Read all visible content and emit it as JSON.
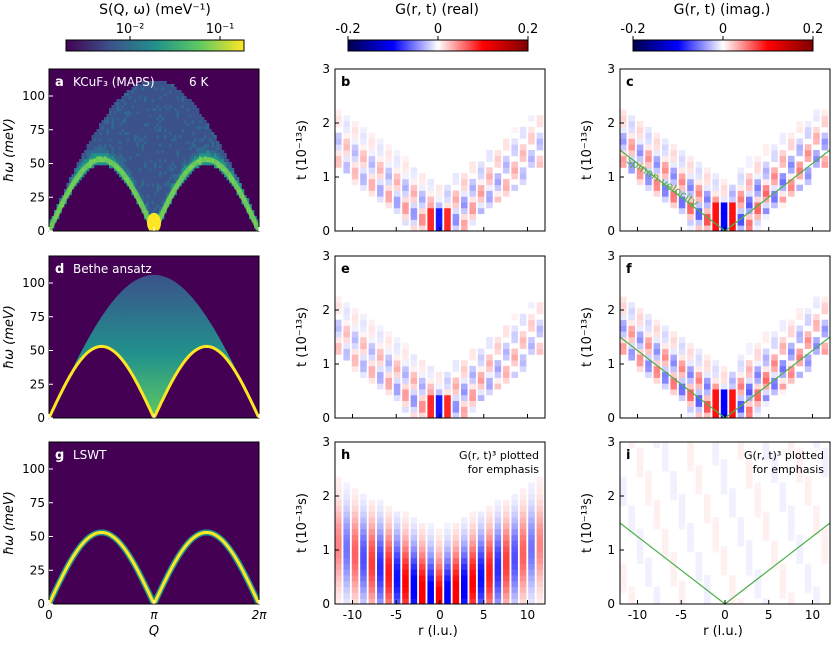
{
  "chart_data": {
    "type": "heatmap",
    "colorbars": [
      {
        "label": "S(Q, ω) (meV⁻¹)",
        "scale": "log",
        "ticks": [
          "10⁻²",
          "10⁻¹"
        ],
        "colormap": "viridis"
      },
      {
        "label": "G(r, t) (real)",
        "ticks": [
          "-0.2",
          "0",
          "0.2"
        ],
        "range": [
          -0.2,
          0.2
        ],
        "colormap": "seismic"
      },
      {
        "label": "G(r, t) (imag.)",
        "ticks": [
          "-0.2",
          "0",
          "0.2"
        ],
        "range": [
          -0.2,
          0.2
        ],
        "colormap": "seismic"
      }
    ],
    "axes": {
      "omega": {
        "ylabel": "ħω (meV)",
        "ylim": [
          0,
          120
        ],
        "ticks": [
          "0",
          "25",
          "50",
          "75",
          "100"
        ]
      },
      "Q": {
        "xlabel": "Q",
        "xlim": [
          "0",
          "2π"
        ],
        "ticks": [
          "0",
          "π",
          "2π"
        ]
      },
      "time": {
        "ylabel": "t (10⁻¹³s)",
        "ylim": [
          0,
          3
        ],
        "ticks": [
          "0",
          "1",
          "2",
          "3"
        ]
      },
      "r": {
        "xlabel": "r (l.u.)",
        "xlim": [
          -12,
          12
        ],
        "ticks": [
          "-10",
          "-5",
          "0",
          "5",
          "10"
        ]
      }
    },
    "panels": [
      {
        "id": "a",
        "label": "KCuF₃ (MAPS)",
        "extra": "6 K",
        "kind": "S",
        "peak_meV": 53
      },
      {
        "id": "b",
        "kind": "G-real"
      },
      {
        "id": "c",
        "kind": "G-imag",
        "annotation": "spinon velocity",
        "cone_slope_lu_per_t": 8
      },
      {
        "id": "d",
        "label": "Bethe ansatz",
        "kind": "S",
        "peak_meV": 53,
        "upper_bound_meV": 106
      },
      {
        "id": "e",
        "kind": "G-real"
      },
      {
        "id": "f",
        "kind": "G-imag",
        "cone_slope_lu_per_t": 8
      },
      {
        "id": "g",
        "label": "LSWT",
        "kind": "S",
        "peak_meV": 53
      },
      {
        "id": "h",
        "kind": "G-real",
        "annotation": [
          "G(r, t)³ plotted",
          "for emphasis"
        ]
      },
      {
        "id": "i",
        "kind": "G-imag",
        "annotation": [
          "G(r, t)³ plotted",
          "for emphasis"
        ],
        "cone_slope_lu_per_t": 8
      }
    ]
  },
  "colors": {
    "spinon_line": "#4daf4a",
    "text": "#000000",
    "panel_label_light": "#ffffff"
  }
}
